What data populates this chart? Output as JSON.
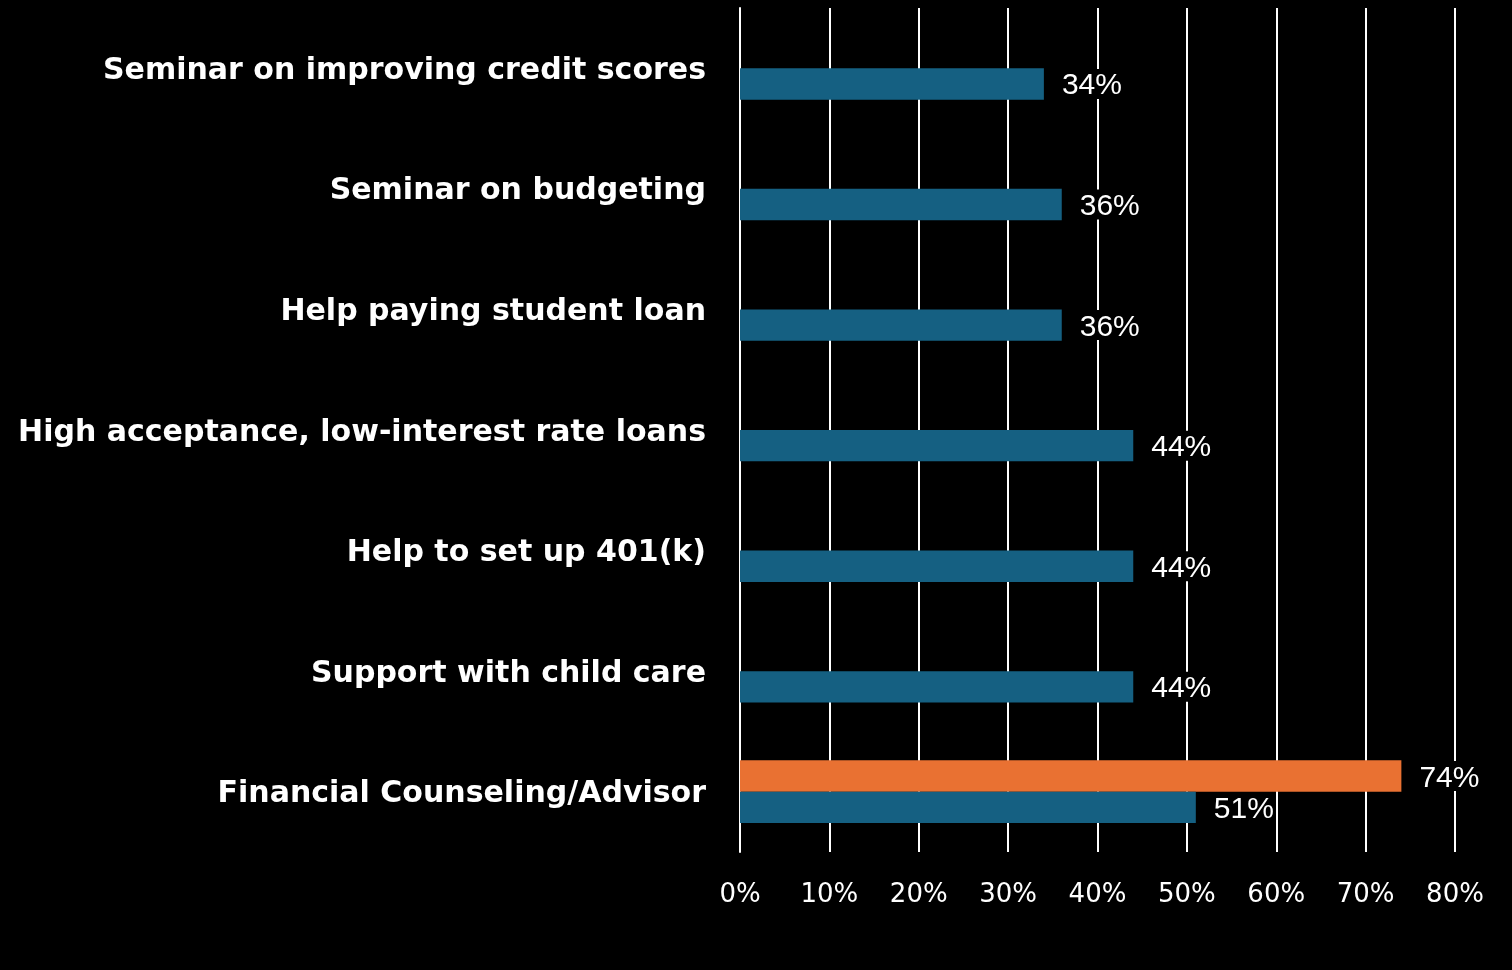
{
  "chart_data": {
    "type": "bar",
    "orientation": "horizontal",
    "categories": [
      "Seminar on improving credit scores",
      "Seminar on budgeting",
      "Help paying student loan",
      "High acceptance, low-interest rate loans",
      "Help to set up 401(k)",
      "Support with child care",
      "Financial Counseling/Advisor"
    ],
    "series": [
      {
        "color": "#e97132",
        "values": [
          null,
          null,
          null,
          null,
          null,
          null,
          74
        ],
        "value_labels": [
          null,
          null,
          null,
          null,
          null,
          null,
          "74%"
        ]
      },
      {
        "color": "#156082",
        "values": [
          34,
          36,
          36,
          44,
          44,
          44,
          51
        ],
        "value_labels": [
          "34%",
          "36%",
          "36%",
          "44%",
          "44%",
          "44%",
          "51%"
        ]
      }
    ],
    "xlim": [
      0,
      80
    ],
    "xticks": [
      {
        "value": 0,
        "label": "0%"
      },
      {
        "value": 10,
        "label": "10%"
      },
      {
        "value": 20,
        "label": "20%"
      },
      {
        "value": 30,
        "label": "30%"
      },
      {
        "value": 40,
        "label": "40%"
      },
      {
        "value": 50,
        "label": "50%"
      },
      {
        "value": 60,
        "label": "60%"
      },
      {
        "value": 70,
        "label": "70%"
      },
      {
        "value": 80,
        "label": "80%"
      }
    ],
    "grid": "x"
  }
}
